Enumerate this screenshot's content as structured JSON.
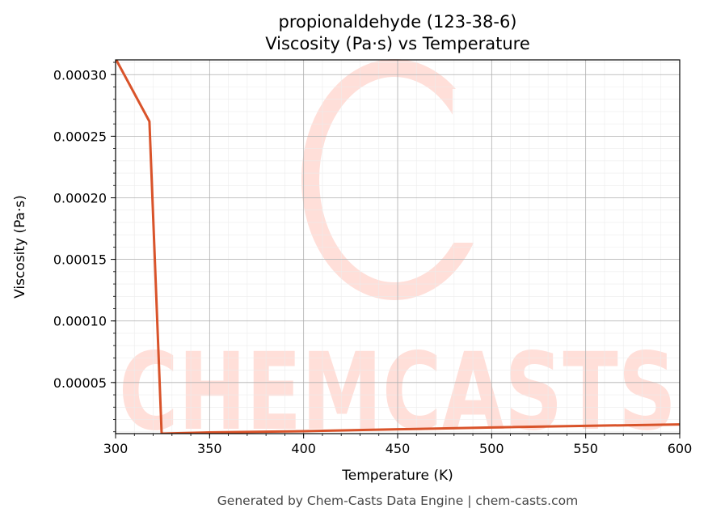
{
  "chart_data": {
    "type": "line",
    "title": "propionaldehyde (123-38-6)",
    "subtitle": "Viscosity (Pa·s) vs Temperature",
    "xlabel": "Temperature (K)",
    "ylabel": "Viscosity (Pa·s)",
    "xlim": [
      300,
      600
    ],
    "ylim": [
      8.5e-06,
      0.000312
    ],
    "x_ticks": [
      300,
      350,
      400,
      450,
      500,
      550,
      600
    ],
    "x_tick_labels": [
      "300",
      "350",
      "400",
      "450",
      "500",
      "550",
      "600"
    ],
    "y_ticks": [
      5e-05,
      0.0001,
      0.00015,
      0.0002,
      0.00025,
      0.0003
    ],
    "y_tick_labels": [
      "0.00005",
      "0.00010",
      "0.00015",
      "0.00020",
      "0.00025",
      "0.00030"
    ],
    "grid": true,
    "series": [
      {
        "color": "#d9532a",
        "x": [
          300,
          318,
          324.5,
          350,
          400,
          450,
          500,
          550,
          600
        ],
        "y": [
          0.000313,
          0.000262,
          8.5e-06,
          9.5e-06,
          1.05e-05,
          1.2e-05,
          1.35e-05,
          1.48e-05,
          1.6e-05
        ]
      }
    ]
  },
  "watermark": {
    "text": "CHEMCASTS",
    "color": "#ffdfd9"
  },
  "footer": "Generated by Chem-Casts Data Engine | chem-casts.com"
}
